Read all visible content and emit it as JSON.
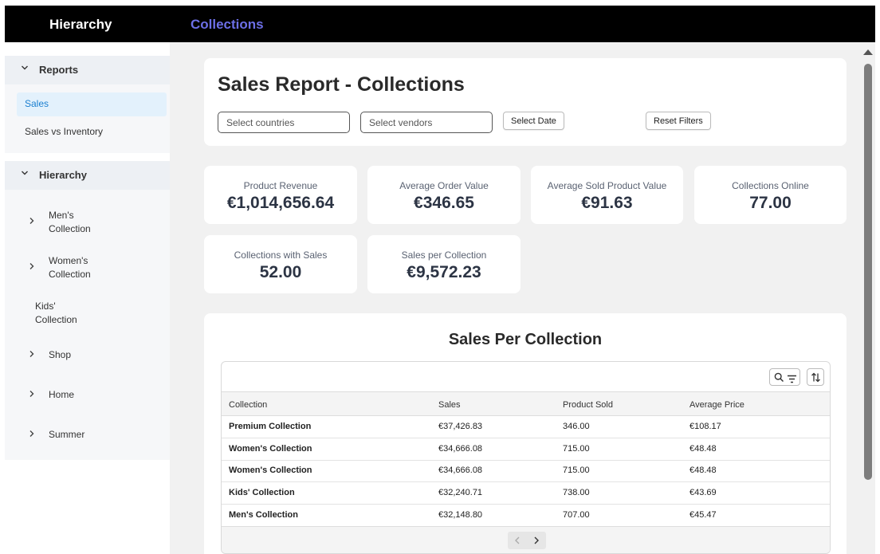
{
  "header": {
    "brand": "Hierarchy",
    "section": "Collections"
  },
  "sidebar": {
    "reports_label": "Reports",
    "reports_items": [
      "Sales",
      "Sales vs Inventory"
    ],
    "hierarchy_label": "Hierarchy",
    "tree": {
      "mens": [
        "Men's",
        "Collection"
      ],
      "womens": [
        "Women's",
        "Collection"
      ],
      "kids": [
        "Kids'",
        "Collection"
      ],
      "shop": "Shop",
      "home": "Home",
      "summer": "Summer"
    }
  },
  "page": {
    "title": "Sales Report - Collections",
    "filters": {
      "countries_placeholder": "Select countries",
      "vendors_placeholder": "Select vendors",
      "date_button": "Select Date",
      "reset_button": "Reset Filters"
    }
  },
  "kpis": [
    {
      "label": "Product Revenue",
      "value": "€1,014,656.64"
    },
    {
      "label": "Average Order Value",
      "value": "€346.65"
    },
    {
      "label": "Average Sold Product Value",
      "value": "€91.63"
    },
    {
      "label": "Collections Online",
      "value": "77.00"
    },
    {
      "label": "Collections with Sales",
      "value": "52.00"
    },
    {
      "label": "Sales per Collection",
      "value": "€9,572.23"
    }
  ],
  "table": {
    "title": "Sales Per Collection",
    "columns": [
      "Collection",
      "Sales",
      "Product Sold",
      "Average Price"
    ],
    "rows": [
      [
        "Premium Collection",
        "€37,426.83",
        "346.00",
        "€108.17"
      ],
      [
        "Women's Collection",
        "€34,666.08",
        "715.00",
        "€48.48"
      ],
      [
        "Women's Collection",
        "€34,666.08",
        "715.00",
        "€48.48"
      ],
      [
        "Kids' Collection",
        "€32,240.71",
        "738.00",
        "€43.69"
      ],
      [
        "Men's Collection",
        "€32,148.80",
        "707.00",
        "€45.47"
      ]
    ]
  },
  "colors": {
    "accent": "#6c6fe6",
    "active": "#1a7fd0",
    "topbar": "#000000"
  },
  "icons": [
    "chevron-down-icon",
    "chevron-right-icon",
    "search-icon",
    "filter-icon",
    "sort-icon",
    "prev-page-icon",
    "next-page-icon"
  ]
}
